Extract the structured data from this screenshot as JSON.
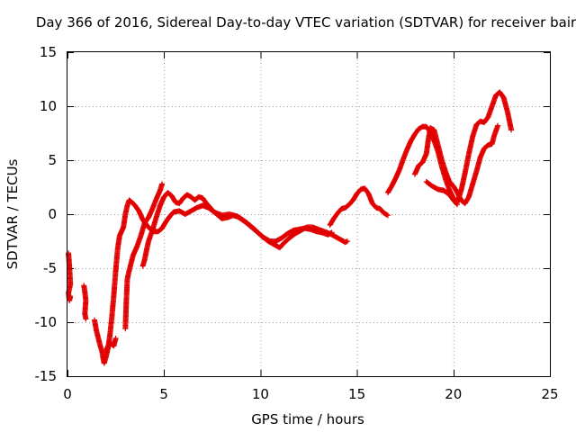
{
  "chart_data": {
    "type": "scatter",
    "title": "Day 366 of 2016, Sidereal Day-to-day VTEC variation (SDTVAR) for receiver bair",
    "xlabel": "GPS time / hours",
    "ylabel": "SDTVAR / TECUs",
    "xlim": [
      0,
      25
    ],
    "ylim": [
      -15,
      15
    ],
    "xticks": [
      0,
      5,
      10,
      15,
      20,
      25
    ],
    "yticks": [
      -15,
      -10,
      -5,
      0,
      5,
      10,
      15
    ],
    "grid": true,
    "marker": "plus",
    "color": "#e00000",
    "series_segments": [
      [
        [
          0.05,
          -3.6
        ],
        [
          0.1,
          -4.8
        ],
        [
          0.15,
          -6.5
        ],
        [
          0.05,
          -7.3
        ],
        [
          0.1,
          -8.0
        ],
        [
          0.15,
          -7.6
        ]
      ],
      [
        [
          0.85,
          -6.6
        ],
        [
          0.9,
          -7.2
        ],
        [
          0.95,
          -8.0
        ],
        [
          0.9,
          -9.2
        ],
        [
          0.95,
          -9.7
        ]
      ],
      [
        [
          1.4,
          -9.8
        ],
        [
          1.5,
          -10.8
        ],
        [
          1.6,
          -11.5
        ],
        [
          1.7,
          -12.2
        ],
        [
          1.8,
          -12.8
        ],
        [
          1.85,
          -13.4
        ],
        [
          1.9,
          -13.8
        ],
        [
          2.0,
          -13.2
        ],
        [
          2.1,
          -12.4
        ],
        [
          2.2,
          -11.2
        ],
        [
          2.3,
          -9.5
        ],
        [
          2.4,
          -7.5
        ],
        [
          2.5,
          -5.2
        ],
        [
          2.6,
          -3.2
        ],
        [
          2.7,
          -2.0
        ],
        [
          2.8,
          -1.6
        ],
        [
          2.9,
          -1.2
        ],
        [
          3.0,
          0.0
        ],
        [
          3.1,
          0.8
        ],
        [
          3.2,
          1.3
        ],
        [
          3.4,
          1.0
        ],
        [
          3.5,
          0.8
        ],
        [
          3.7,
          0.3
        ],
        [
          3.9,
          -0.5
        ],
        [
          4.1,
          -1.0
        ],
        [
          4.3,
          -1.4
        ],
        [
          4.5,
          -1.6
        ],
        [
          4.7,
          -1.6
        ],
        [
          4.9,
          -1.3
        ],
        [
          5.1,
          -0.7
        ],
        [
          5.3,
          -0.2
        ],
        [
          5.5,
          0.2
        ],
        [
          5.8,
          0.3
        ],
        [
          6.1,
          0.0
        ],
        [
          6.4,
          0.3
        ],
        [
          6.7,
          0.6
        ],
        [
          7.0,
          0.8
        ],
        [
          7.3,
          0.6
        ],
        [
          7.6,
          0.2
        ],
        [
          8.0,
          -0.1
        ],
        [
          8.4,
          0.0
        ],
        [
          8.8,
          -0.2
        ],
        [
          9.2,
          -0.7
        ],
        [
          9.6,
          -1.3
        ],
        [
          10.0,
          -1.9
        ],
        [
          10.4,
          -2.5
        ],
        [
          10.8,
          -2.9
        ],
        [
          11.0,
          -3.1
        ],
        [
          11.2,
          -2.7
        ],
        [
          11.5,
          -2.2
        ],
        [
          11.8,
          -1.8
        ],
        [
          12.1,
          -1.5
        ],
        [
          12.4,
          -1.2
        ],
        [
          12.7,
          -1.2
        ],
        [
          13.0,
          -1.4
        ],
        [
          13.3,
          -1.6
        ],
        [
          13.6,
          -1.8
        ],
        [
          13.8,
          -2.0
        ],
        [
          14.0,
          -2.2
        ],
        [
          14.2,
          -2.4
        ],
        [
          14.4,
          -2.6
        ],
        [
          14.5,
          -2.5
        ]
      ],
      [
        [
          2.0,
          -12.6
        ],
        [
          2.2,
          -11.9
        ],
        [
          2.4,
          -12.2
        ],
        [
          2.5,
          -11.5
        ]
      ],
      [
        [
          3.0,
          -10.6
        ],
        [
          3.05,
          -8.0
        ],
        [
          3.1,
          -6.0
        ],
        [
          3.2,
          -5.2
        ],
        [
          3.3,
          -4.5
        ],
        [
          3.4,
          -3.8
        ],
        [
          3.6,
          -3.0
        ],
        [
          3.8,
          -2.0
        ],
        [
          4.0,
          -0.8
        ],
        [
          4.2,
          -0.3
        ],
        [
          4.4,
          0.5
        ],
        [
          4.6,
          1.4
        ],
        [
          4.8,
          2.2
        ],
        [
          4.9,
          2.8
        ]
      ],
      [
        [
          3.9,
          -4.8
        ],
        [
          4.0,
          -4.2
        ],
        [
          4.1,
          -3.3
        ],
        [
          4.2,
          -2.5
        ],
        [
          4.4,
          -1.5
        ],
        [
          4.6,
          -0.3
        ],
        [
          4.8,
          0.8
        ],
        [
          5.0,
          1.6
        ],
        [
          5.2,
          2.0
        ],
        [
          5.4,
          1.7
        ],
        [
          5.6,
          1.1
        ],
        [
          5.8,
          1.0
        ],
        [
          6.0,
          1.5
        ],
        [
          6.2,
          1.8
        ],
        [
          6.4,
          1.6
        ],
        [
          6.6,
          1.3
        ],
        [
          6.8,
          1.6
        ],
        [
          7.0,
          1.5
        ],
        [
          7.2,
          1.0
        ],
        [
          7.4,
          0.6
        ],
        [
          7.6,
          0.2
        ],
        [
          7.8,
          -0.1
        ],
        [
          8.0,
          -0.4
        ],
        [
          8.3,
          -0.3
        ],
        [
          8.6,
          -0.1
        ],
        [
          8.9,
          -0.3
        ],
        [
          9.3,
          -0.8
        ],
        [
          9.7,
          -1.4
        ],
        [
          10.1,
          -2.1
        ],
        [
          10.5,
          -2.5
        ],
        [
          10.8,
          -2.5
        ],
        [
          11.1,
          -2.2
        ],
        [
          11.4,
          -1.8
        ],
        [
          11.7,
          -1.5
        ],
        [
          12.0,
          -1.4
        ],
        [
          12.3,
          -1.3
        ],
        [
          12.6,
          -1.4
        ],
        [
          12.9,
          -1.6
        ],
        [
          13.2,
          -1.7
        ],
        [
          13.5,
          -1.9
        ],
        [
          13.7,
          -1.7
        ]
      ],
      [
        [
          13.6,
          -1.0
        ],
        [
          13.8,
          -0.4
        ],
        [
          14.0,
          0.1
        ],
        [
          14.2,
          0.5
        ],
        [
          14.4,
          0.6
        ],
        [
          14.6,
          0.9
        ],
        [
          14.8,
          1.3
        ],
        [
          15.0,
          1.9
        ],
        [
          15.2,
          2.3
        ],
        [
          15.4,
          2.4
        ],
        [
          15.6,
          1.9
        ],
        [
          15.8,
          1.0
        ],
        [
          16.0,
          0.6
        ],
        [
          16.2,
          0.5
        ],
        [
          16.4,
          0.1
        ],
        [
          16.6,
          -0.1
        ]
      ],
      [
        [
          16.6,
          2.0
        ],
        [
          16.8,
          2.6
        ],
        [
          17.0,
          3.3
        ],
        [
          17.2,
          4.1
        ],
        [
          17.4,
          5.1
        ],
        [
          17.6,
          6.0
        ],
        [
          17.8,
          6.8
        ],
        [
          18.0,
          7.4
        ],
        [
          18.2,
          7.9
        ],
        [
          18.4,
          8.1
        ],
        [
          18.6,
          8.1
        ],
        [
          18.8,
          7.6
        ],
        [
          19.0,
          6.8
        ],
        [
          19.2,
          5.8
        ],
        [
          19.4,
          4.4
        ],
        [
          19.6,
          3.2
        ],
        [
          19.8,
          2.2
        ],
        [
          20.0,
          1.5
        ],
        [
          20.2,
          1.1
        ],
        [
          20.4,
          2.2
        ],
        [
          20.6,
          3.8
        ],
        [
          20.8,
          5.6
        ],
        [
          21.0,
          7.2
        ],
        [
          21.2,
          8.3
        ],
        [
          21.4,
          8.6
        ],
        [
          21.6,
          8.5
        ],
        [
          21.8,
          9.0
        ],
        [
          22.0,
          10.0
        ],
        [
          22.2,
          11.0
        ],
        [
          22.4,
          11.3
        ],
        [
          22.6,
          10.8
        ],
        [
          22.8,
          9.5
        ],
        [
          23.0,
          7.8
        ]
      ],
      [
        [
          18.0,
          3.7
        ],
        [
          18.2,
          4.5
        ],
        [
          18.4,
          4.8
        ],
        [
          18.6,
          5.6
        ],
        [
          18.7,
          6.9
        ],
        [
          18.8,
          8.0
        ],
        [
          19.0,
          7.8
        ],
        [
          19.2,
          6.4
        ],
        [
          19.4,
          5.0
        ],
        [
          19.6,
          3.9
        ],
        [
          19.8,
          3.0
        ],
        [
          20.0,
          2.6
        ],
        [
          20.2,
          2.0
        ],
        [
          20.4,
          1.3
        ],
        [
          20.6,
          1.0
        ],
        [
          20.8,
          1.6
        ],
        [
          21.0,
          2.8
        ],
        [
          21.2,
          4.0
        ],
        [
          21.4,
          5.3
        ],
        [
          21.6,
          6.1
        ],
        [
          21.8,
          6.4
        ],
        [
          22.0,
          6.5
        ],
        [
          22.1,
          7.2
        ],
        [
          22.2,
          7.7
        ],
        [
          22.3,
          8.2
        ]
      ],
      [
        [
          18.6,
          3.0
        ],
        [
          18.9,
          2.6
        ],
        [
          19.2,
          2.3
        ],
        [
          19.5,
          2.2
        ],
        [
          19.8,
          1.8
        ],
        [
          20.0,
          1.3
        ],
        [
          20.2,
          0.9
        ]
      ]
    ]
  }
}
